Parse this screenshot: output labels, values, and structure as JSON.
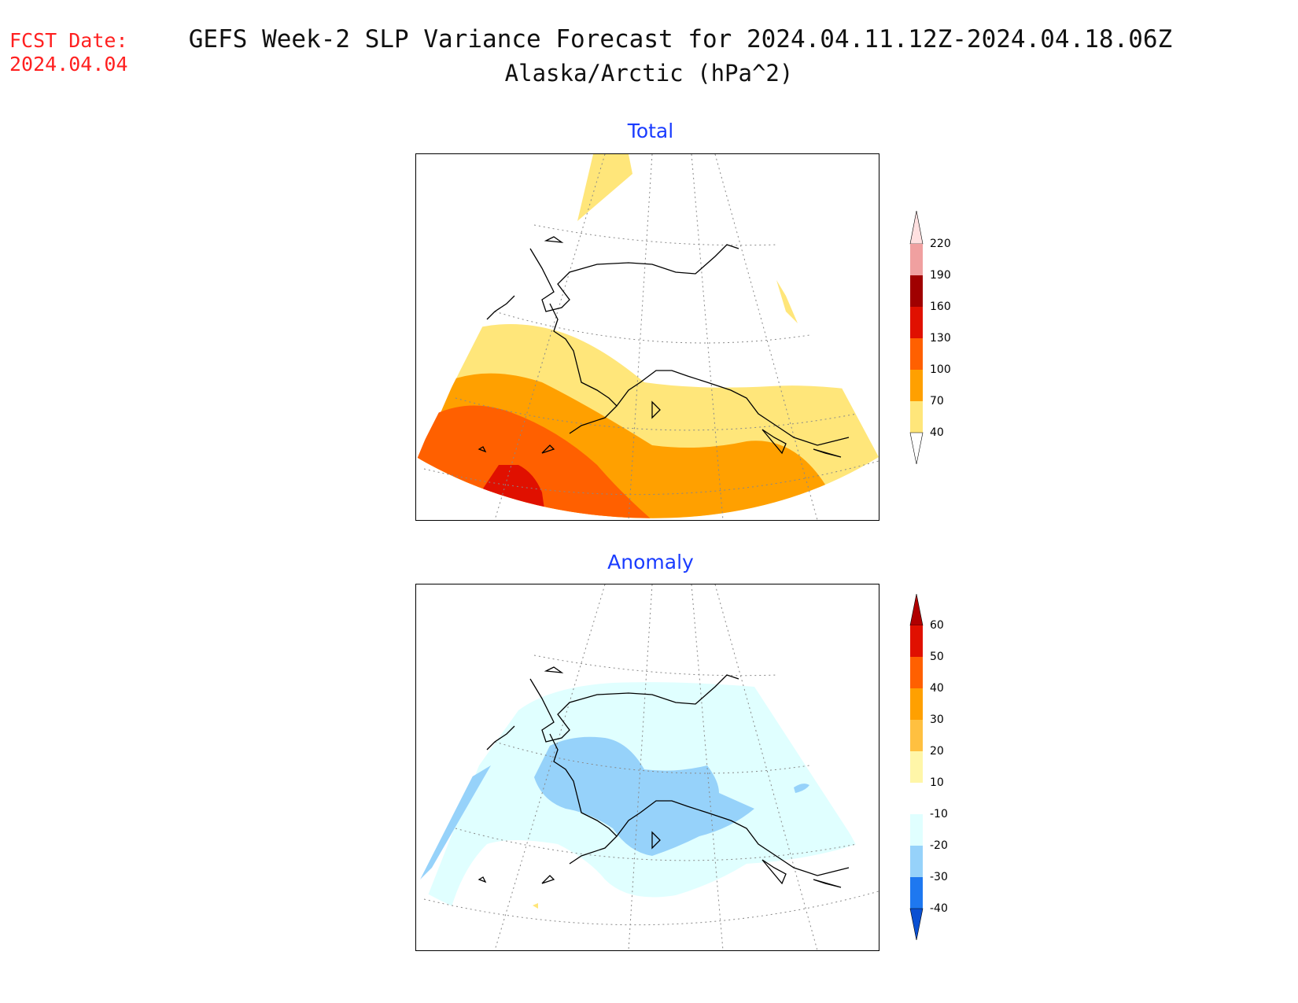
{
  "header": {
    "fcst_label": "FCST Date:",
    "fcst_date": "2024.04.04",
    "title_line1": "GEFS Week-2 SLP Variance Forecast for 2024.04.11.12Z-2024.04.18.06Z",
    "title_line2": "Alaska/Arctic (hPa^2)"
  },
  "panels": [
    {
      "title": "Total",
      "colorbar": {
        "levels": [
          "220",
          "190",
          "160",
          "130",
          "100",
          "70",
          "40"
        ],
        "colors": [
          "#ffe0e0",
          "#f0a0a0",
          "#a00000",
          "#e01000",
          "#ff6000",
          "#ffa000",
          "#ffe67a"
        ]
      }
    },
    {
      "title": "Anomaly",
      "colorbar": {
        "levels": [
          "60",
          "50",
          "40",
          "30",
          "20",
          "10",
          "-10",
          "-20",
          "-30",
          "-40"
        ],
        "colors": [
          "#b00000",
          "#e01000",
          "#ff6000",
          "#ffa000",
          "#ffc040",
          "#fff6a8",
          "#ffffff",
          "#e0ffff",
          "#96d2fa",
          "#1e78f0",
          "#0a50d2"
        ]
      }
    }
  ],
  "colors": {
    "title_red": "#ff2020",
    "panel_title_blue": "#1a3cff"
  }
}
